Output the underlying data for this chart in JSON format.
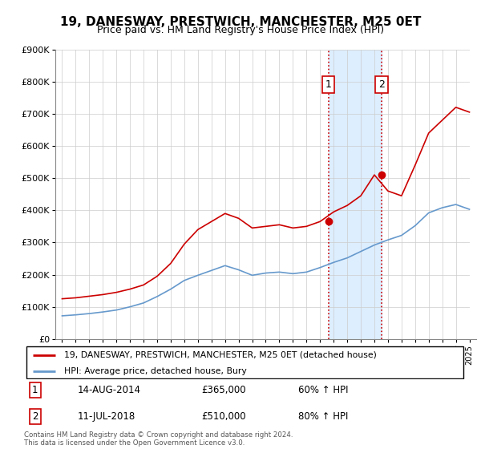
{
  "title": "19, DANESWAY, PRESTWICH, MANCHESTER, M25 0ET",
  "subtitle": "Price paid vs. HM Land Registry's House Price Index (HPI)",
  "red_label": "19, DANESWAY, PRESTWICH, MANCHESTER, M25 0ET (detached house)",
  "blue_label": "HPI: Average price, detached house, Bury",
  "footnote": "Contains HM Land Registry data © Crown copyright and database right 2024.\nThis data is licensed under the Open Government Licence v3.0.",
  "annotation1": {
    "label": "1",
    "date": "14-AUG-2014",
    "price": "£365,000",
    "pct": "60% ↑ HPI",
    "x": 2014.62
  },
  "annotation2": {
    "label": "2",
    "date": "11-JUL-2018",
    "price": "£510,000",
    "pct": "80% ↑ HPI",
    "x": 2018.53
  },
  "ylim": [
    0,
    900000
  ],
  "xlim": [
    1994.5,
    2025.5
  ],
  "red_color": "#cc0000",
  "blue_color": "#6699cc",
  "shaded_color": "#ddeeff",
  "grid_color": "#cccccc",
  "years": [
    1995,
    1996,
    1997,
    1998,
    1999,
    2000,
    2001,
    2002,
    2003,
    2004,
    2005,
    2006,
    2007,
    2008,
    2009,
    2010,
    2011,
    2012,
    2013,
    2014,
    2015,
    2016,
    2017,
    2018,
    2019,
    2020,
    2021,
    2022,
    2023,
    2024,
    2025
  ],
  "red_values": [
    125000,
    128000,
    133000,
    138000,
    145000,
    155000,
    168000,
    195000,
    235000,
    295000,
    340000,
    365000,
    390000,
    375000,
    345000,
    350000,
    355000,
    345000,
    350000,
    365000,
    395000,
    415000,
    445000,
    510000,
    460000,
    445000,
    540000,
    640000,
    680000,
    720000,
    705000
  ],
  "blue_values": [
    72000,
    75000,
    79000,
    84000,
    90000,
    100000,
    112000,
    132000,
    155000,
    182000,
    198000,
    213000,
    228000,
    215000,
    198000,
    205000,
    208000,
    203000,
    208000,
    222000,
    238000,
    252000,
    272000,
    292000,
    308000,
    322000,
    352000,
    392000,
    408000,
    418000,
    403000
  ]
}
